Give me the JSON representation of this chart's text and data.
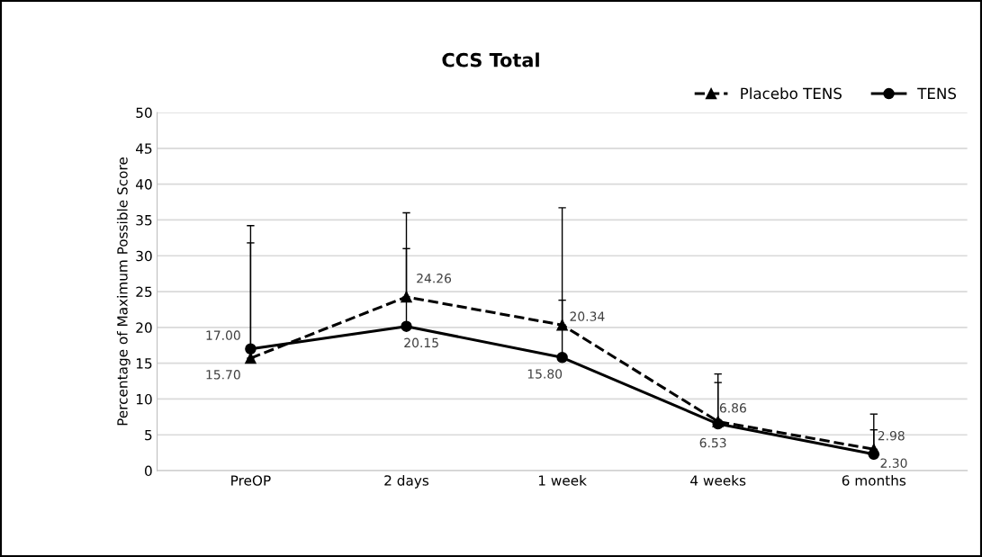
{
  "chart_data": {
    "type": "line",
    "title": "CCS Total",
    "ylabel": "Percentage of Maximum Possible Score",
    "categories": [
      "PreOP",
      "2 days",
      "1 week",
      "4 weeks",
      "6 months"
    ],
    "series": [
      {
        "name": "Placebo TENS",
        "color": "#000000",
        "marker": "triangle",
        "line_style": "dashed",
        "values": [
          15.7,
          24.26,
          20.34,
          6.86,
          2.98
        ],
        "value_labels": [
          "15.70",
          "24.26",
          "20.34",
          "6.86",
          "2.98"
        ],
        "errors": [
          [
            15.7,
            34.2
          ],
          [
            24.26,
            36.0
          ],
          [
            20.34,
            36.7
          ],
          [
            6.86,
            13.5
          ],
          [
            2.98,
            7.9
          ]
        ]
      },
      {
        "name": "TENS",
        "color": "#000000",
        "marker": "circle",
        "line_style": "solid",
        "values": [
          17.0,
          20.15,
          15.8,
          6.53,
          2.3
        ],
        "value_labels": [
          "17.00",
          "20.15",
          "15.80",
          "6.53",
          "2.30"
        ],
        "errors": [
          [
            17.0,
            31.8
          ],
          [
            20.15,
            31.0
          ],
          [
            15.8,
            23.8
          ],
          [
            6.53,
            12.3
          ],
          [
            2.3,
            5.7
          ]
        ]
      }
    ],
    "ylim": [
      0,
      50
    ],
    "yticks": [
      0,
      5,
      10,
      15,
      20,
      25,
      30,
      35,
      40,
      45,
      50
    ],
    "grid": "y",
    "legend": "top right"
  }
}
